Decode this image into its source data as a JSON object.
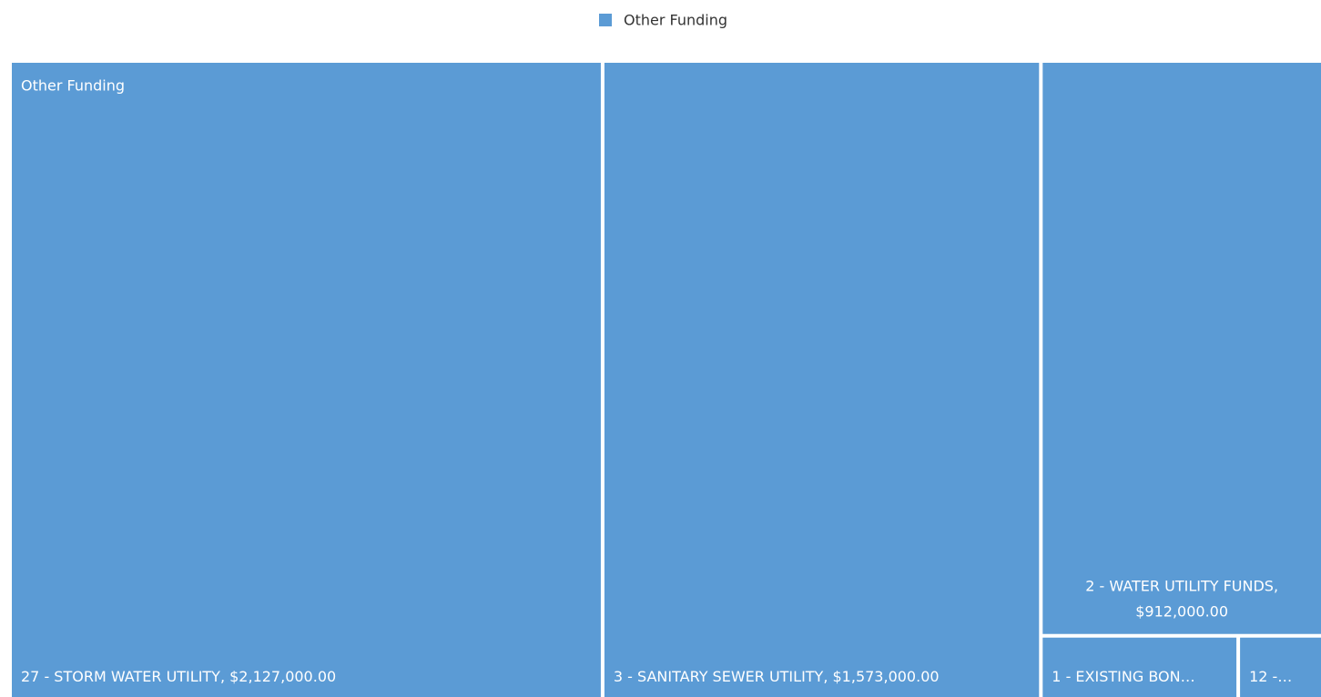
{
  "chart_data": {
    "type": "treemap",
    "legend": "top",
    "categories": [
      "27 - STORM WATER UTILITY",
      "3 - SANITARY SEWER UTILITY",
      "2 - WATER UTILITY FUNDS",
      "1 - EXISTING BON…",
      "12 -…"
    ],
    "series": [
      {
        "name": "Other Funding",
        "color": "#5b9bd5",
        "values": [
          2127000,
          1573000,
          912000,
          70000,
          30000
        ],
        "value_labels": [
          "$2,127,000.00",
          "$1,573,000.00",
          "$912,000.00",
          null,
          null
        ]
      }
    ]
  }
}
